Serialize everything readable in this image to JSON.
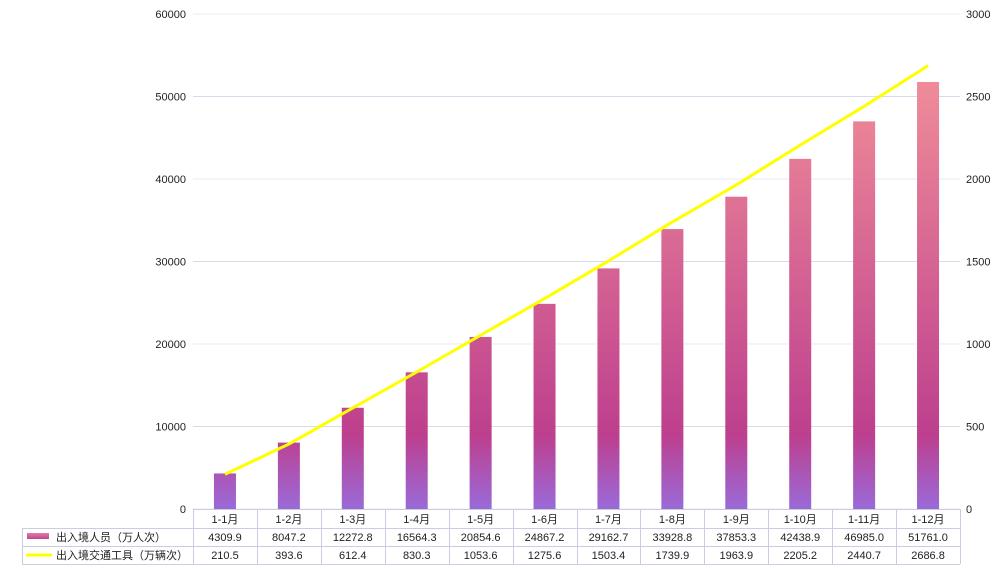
{
  "chart_data": {
    "type": "bar+line",
    "categories": [
      "1-1月",
      "1-2月",
      "1-3月",
      "1-4月",
      "1-5月",
      "1-6月",
      "1-7月",
      "1-8月",
      "1-9月",
      "1-10月",
      "1-11月",
      "1-12月"
    ],
    "series": [
      {
        "name": "出入境人员（万人次）",
        "type": "bar",
        "axis": "left",
        "values": [
          4309.9,
          8047.2,
          12272.8,
          16564.3,
          20854.6,
          24867.2,
          29162.7,
          33928.8,
          37853.3,
          42438.9,
          46985.0,
          51761.0
        ],
        "display": [
          "4309.9",
          "8047.2",
          "12272.8",
          "16564.3",
          "20854.6",
          "24867.2",
          "29162.7",
          "33928.8",
          "37853.3",
          "42438.9",
          "46985.0",
          "51761.0"
        ],
        "colors": [
          "#f99b9b",
          "#bd3f8e",
          "#9a6ad8"
        ]
      },
      {
        "name": "出入境交通工具（万辆次）",
        "type": "line",
        "axis": "right",
        "values": [
          210.5,
          393.6,
          612.4,
          830.3,
          1053.6,
          1275.6,
          1503.4,
          1739.9,
          1963.9,
          2205.2,
          2440.7,
          2686.8
        ],
        "display": [
          "210.5",
          "393.6",
          "612.4",
          "830.3",
          "1053.6",
          "1275.6",
          "1503.4",
          "1739.9",
          "1963.9",
          "2205.2",
          "2440.7",
          "2686.8"
        ],
        "color": "#ffff00"
      }
    ],
    "left_axis": {
      "ylim": [
        0,
        60000
      ],
      "ticks": [
        "0",
        "10000",
        "20000",
        "30000",
        "40000",
        "50000",
        "60000"
      ]
    },
    "right_axis": {
      "ylim": [
        0,
        3000
      ],
      "ticks": [
        "0",
        "500",
        "1000",
        "1500",
        "2000",
        "2500",
        "3000"
      ]
    },
    "grid": true,
    "legend": "data-table-bottom",
    "xlabel": "",
    "ylabel": "",
    "title": ""
  }
}
